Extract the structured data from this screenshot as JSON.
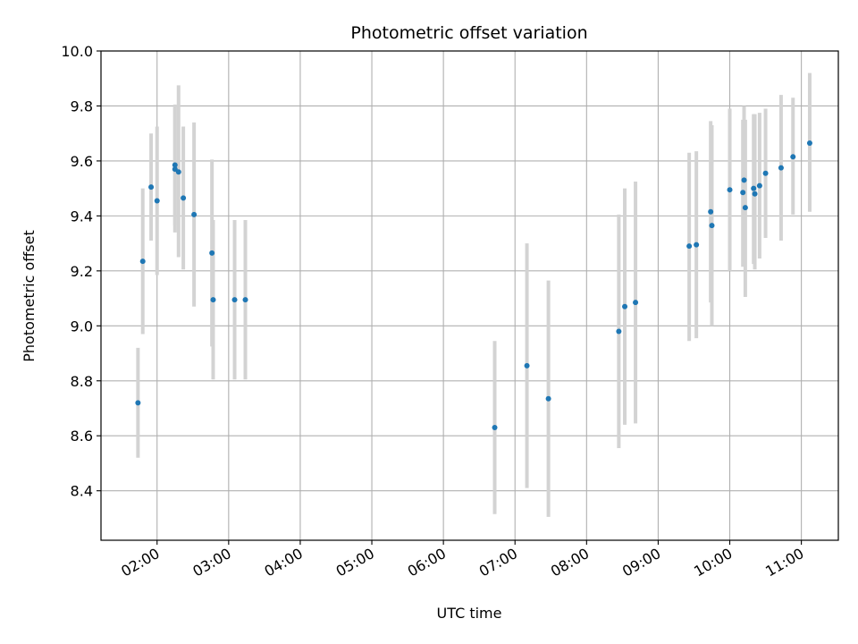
{
  "chart_data": {
    "type": "scatter",
    "title": "Photometric offset variation",
    "xlabel": "UTC time",
    "ylabel": "Photometric offset",
    "x_tick_labels": [
      "02:00",
      "03:00",
      "04:00",
      "05:00",
      "06:00",
      "07:00",
      "08:00",
      "09:00",
      "10:00",
      "11:00"
    ],
    "x_ticks": [
      "02:00",
      "03:00",
      "04:00",
      "05:00",
      "06:00",
      "07:00",
      "08:00",
      "09:00",
      "10:00",
      "11:00"
    ],
    "xlim": [
      "01:13",
      "11:31"
    ],
    "y_tick_labels": [
      "8.4",
      "8.6",
      "8.8",
      "9.0",
      "9.2",
      "9.4",
      "9.6",
      "9.8",
      "10.0"
    ],
    "y_ticks": [
      8.4,
      8.6,
      8.8,
      9.0,
      9.2,
      9.4,
      9.6,
      9.8,
      10.0
    ],
    "ylim": [
      8.22,
      10.0
    ],
    "grid": true,
    "point_color": "#1f77b4",
    "errorbar_color": "#d3d3d3",
    "points": [
      {
        "x": "01:44",
        "y": 8.72,
        "low": 8.52,
        "high": 8.92
      },
      {
        "x": "01:48",
        "y": 9.235,
        "low": 8.97,
        "high": 9.5
      },
      {
        "x": "01:55",
        "y": 9.505,
        "low": 9.31,
        "high": 9.7
      },
      {
        "x": "02:00",
        "y": 9.455,
        "low": 9.185,
        "high": 9.725
      },
      {
        "x": "02:15",
        "y": 9.57,
        "low": 9.34,
        "high": 9.8
      },
      {
        "x": "02:15",
        "y": 9.585,
        "low": 9.365,
        "high": 9.805
      },
      {
        "x": "02:18",
        "y": 9.56,
        "low": 9.25,
        "high": 9.875
      },
      {
        "x": "02:22",
        "y": 9.465,
        "low": 9.205,
        "high": 9.725
      },
      {
        "x": "02:31",
        "y": 9.405,
        "low": 9.07,
        "high": 9.74
      },
      {
        "x": "02:46",
        "y": 9.265,
        "low": 8.925,
        "high": 9.605
      },
      {
        "x": "02:47",
        "y": 9.095,
        "low": 8.805,
        "high": 9.385
      },
      {
        "x": "03:05",
        "y": 9.095,
        "low": 8.805,
        "high": 9.385
      },
      {
        "x": "03:14",
        "y": 9.095,
        "low": 8.805,
        "high": 9.385
      },
      {
        "x": "06:43",
        "y": 8.63,
        "low": 8.315,
        "high": 8.945
      },
      {
        "x": "07:10",
        "y": 8.855,
        "low": 8.41,
        "high": 9.3
      },
      {
        "x": "07:28",
        "y": 8.735,
        "low": 8.305,
        "high": 9.165
      },
      {
        "x": "08:27",
        "y": 8.98,
        "low": 8.555,
        "high": 9.405
      },
      {
        "x": "08:32",
        "y": 9.07,
        "low": 8.64,
        "high": 9.5
      },
      {
        "x": "08:41",
        "y": 9.085,
        "low": 8.645,
        "high": 9.525
      },
      {
        "x": "09:26",
        "y": 9.29,
        "low": 8.945,
        "high": 9.63
      },
      {
        "x": "09:32",
        "y": 9.295,
        "low": 8.955,
        "high": 9.635
      },
      {
        "x": "09:44",
        "y": 9.415,
        "low": 9.085,
        "high": 9.745
      },
      {
        "x": "09:45",
        "y": 9.365,
        "low": 9.0,
        "high": 9.73
      },
      {
        "x": "10:00",
        "y": 9.495,
        "low": 9.2,
        "high": 9.79
      },
      {
        "x": "10:11",
        "y": 9.485,
        "low": 9.215,
        "high": 9.75
      },
      {
        "x": "10:12",
        "y": 9.53,
        "low": 9.255,
        "high": 9.8
      },
      {
        "x": "10:13",
        "y": 9.43,
        "low": 9.105,
        "high": 9.75
      },
      {
        "x": "10:20",
        "y": 9.5,
        "low": 9.225,
        "high": 9.77
      },
      {
        "x": "10:21",
        "y": 9.48,
        "low": 9.205,
        "high": 9.77
      },
      {
        "x": "10:25",
        "y": 9.51,
        "low": 9.245,
        "high": 9.775
      },
      {
        "x": "10:30",
        "y": 9.555,
        "low": 9.32,
        "high": 9.79
      },
      {
        "x": "10:43",
        "y": 9.575,
        "low": 9.31,
        "high": 9.84
      },
      {
        "x": "10:53",
        "y": 9.615,
        "low": 9.405,
        "high": 9.83
      },
      {
        "x": "11:07",
        "y": 9.665,
        "low": 9.415,
        "high": 9.92
      }
    ]
  }
}
